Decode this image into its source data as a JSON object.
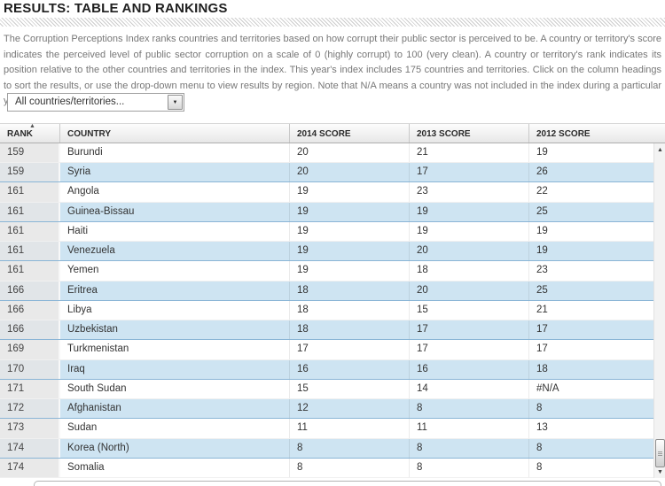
{
  "page": {
    "title": "RESULTS: TABLE AND RANKINGS",
    "description": "The Corruption Perceptions Index ranks countries and territories based on how corrupt their public sector is perceived to be. A country or territory's score indicates the perceived level of public sector corruption on a scale of 0 (highly corrupt) to 100 (very clean). A country or territory's rank indicates its position relative to the other countries and territories in the index. This year's index includes 175 countries and territories. Click on the column headings to sort the results, or use the drop-down menu to view results by region. Note that N/A means a country was not included in the index during a particular year."
  },
  "filter": {
    "selected": "All countries/territories...",
    "dropdown_arrow_icon": "▼"
  },
  "table": {
    "columns": [
      {
        "key": "rank",
        "label": "RANK",
        "sorted": "asc"
      },
      {
        "key": "country",
        "label": "COUNTRY",
        "sorted": "none"
      },
      {
        "key": "s2014",
        "label": "2014 SCORE",
        "sorted": "none"
      },
      {
        "key": "s2013",
        "label": "2013 SCORE",
        "sorted": "none"
      },
      {
        "key": "s2012",
        "label": "2012 SCORE",
        "sorted": "none"
      }
    ],
    "sort_icon": "▲",
    "rows": [
      {
        "rank": "159",
        "country": "Burundi",
        "s2014": "20",
        "s2013": "21",
        "s2012": "19"
      },
      {
        "rank": "159",
        "country": "Syria",
        "s2014": "20",
        "s2013": "17",
        "s2012": "26"
      },
      {
        "rank": "161",
        "country": "Angola",
        "s2014": "19",
        "s2013": "23",
        "s2012": "22"
      },
      {
        "rank": "161",
        "country": "Guinea-Bissau",
        "s2014": "19",
        "s2013": "19",
        "s2012": "25"
      },
      {
        "rank": "161",
        "country": "Haiti",
        "s2014": "19",
        "s2013": "19",
        "s2012": "19"
      },
      {
        "rank": "161",
        "country": "Venezuela",
        "s2014": "19",
        "s2013": "20",
        "s2012": "19"
      },
      {
        "rank": "161",
        "country": "Yemen",
        "s2014": "19",
        "s2013": "18",
        "s2012": "23"
      },
      {
        "rank": "166",
        "country": "Eritrea",
        "s2014": "18",
        "s2013": "20",
        "s2012": "25"
      },
      {
        "rank": "166",
        "country": "Libya",
        "s2014": "18",
        "s2013": "15",
        "s2012": "21"
      },
      {
        "rank": "166",
        "country": "Uzbekistan",
        "s2014": "18",
        "s2013": "17",
        "s2012": "17"
      },
      {
        "rank": "169",
        "country": "Turkmenistan",
        "s2014": "17",
        "s2013": "17",
        "s2012": "17"
      },
      {
        "rank": "170",
        "country": "Iraq",
        "s2014": "16",
        "s2013": "16",
        "s2012": "18"
      },
      {
        "rank": "171",
        "country": "South Sudan",
        "s2014": "15",
        "s2013": "14",
        "s2012": "#N/A"
      },
      {
        "rank": "172",
        "country": "Afghanistan",
        "s2014": "12",
        "s2013": "8",
        "s2012": "8"
      },
      {
        "rank": "173",
        "country": "Sudan",
        "s2014": "11",
        "s2013": "11",
        "s2012": "13"
      },
      {
        "rank": "174",
        "country": "Korea (North)",
        "s2014": "8",
        "s2013": "8",
        "s2012": "8"
      },
      {
        "rank": "174",
        "country": "Somalia",
        "s2014": "8",
        "s2013": "8",
        "s2012": "8"
      }
    ]
  },
  "scrollbar": {
    "up_icon": "▲",
    "down_icon": "▼"
  },
  "colors": {
    "row_alt": "#cee4f2",
    "row_alt_border": "#8ab5d6",
    "rank_column": "#e9e9e9",
    "header_text": "#2a2a2a",
    "body_text": "#333333",
    "description_text": "#777777"
  }
}
